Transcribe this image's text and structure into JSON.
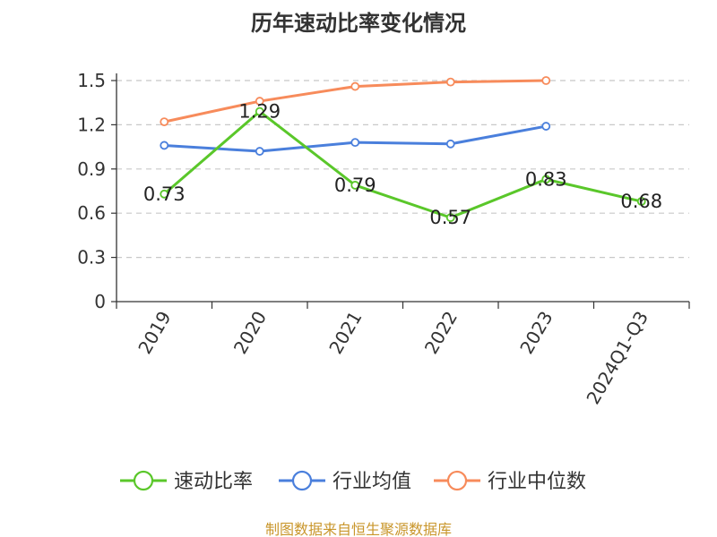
{
  "chart_data": {
    "type": "line",
    "title": "历年速动比率变化情况",
    "categories": [
      "2019",
      "2020",
      "2021",
      "2022",
      "2023",
      "2024Q1-Q3"
    ],
    "ylim": [
      0,
      1.5
    ],
    "yticks": [
      "0",
      "0.3",
      "0.6",
      "0.9",
      "1.2",
      "1.5"
    ],
    "grid": true,
    "legend_position": "bottom",
    "series": [
      {
        "name": "速动比率",
        "color": "#5ac72a",
        "values": [
          0.73,
          1.29,
          0.79,
          0.57,
          0.83,
          0.68
        ],
        "labels": [
          "0.73",
          "1.29",
          "0.79",
          "0.57",
          "0.83",
          "0.68"
        ]
      },
      {
        "name": "行业均值",
        "color": "#4a7fdc",
        "values": [
          1.06,
          1.02,
          1.08,
          1.07,
          1.19,
          null
        ]
      },
      {
        "name": "行业中位数",
        "color": "#f78b5b",
        "values": [
          1.22,
          1.36,
          1.46,
          1.49,
          1.5,
          null
        ]
      }
    ],
    "source": "制图数据来自恒生聚源数据库"
  }
}
